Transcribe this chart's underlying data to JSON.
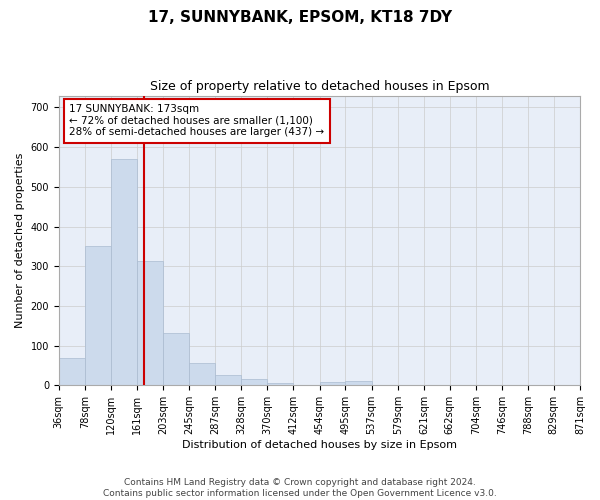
{
  "title": "17, SUNNYBANK, EPSOM, KT18 7DY",
  "subtitle": "Size of property relative to detached houses in Epsom",
  "xlabel": "Distribution of detached houses by size in Epsom",
  "ylabel": "Number of detached properties",
  "bar_color": "#ccdaec",
  "bar_edge_color": "#aabbd0",
  "grid_color": "#cccccc",
  "background_color": "#e8eef8",
  "vline_x": 173,
  "vline_color": "#cc0000",
  "bin_edges": [
    36,
    78,
    120,
    161,
    203,
    245,
    287,
    328,
    370,
    412,
    454,
    495,
    537,
    579,
    621,
    662,
    704,
    746,
    788,
    829,
    871
  ],
  "bar_heights": [
    68,
    352,
    570,
    313,
    131,
    57,
    25,
    15,
    7,
    0,
    8,
    11,
    0,
    0,
    0,
    0,
    0,
    0,
    0,
    0
  ],
  "ylim": [
    0,
    730
  ],
  "yticks": [
    0,
    100,
    200,
    300,
    400,
    500,
    600,
    700
  ],
  "annotation_text": "17 SUNNYBANK: 173sqm\n← 72% of detached houses are smaller (1,100)\n28% of semi-detached houses are larger (437) →",
  "annotation_box_color": "#ffffff",
  "annotation_box_edge": "#cc0000",
  "footer_line1": "Contains HM Land Registry data © Crown copyright and database right 2024.",
  "footer_line2": "Contains public sector information licensed under the Open Government Licence v3.0.",
  "title_fontsize": 11,
  "subtitle_fontsize": 9,
  "axis_label_fontsize": 8,
  "tick_fontsize": 7,
  "annotation_fontsize": 7.5,
  "footer_fontsize": 6.5
}
